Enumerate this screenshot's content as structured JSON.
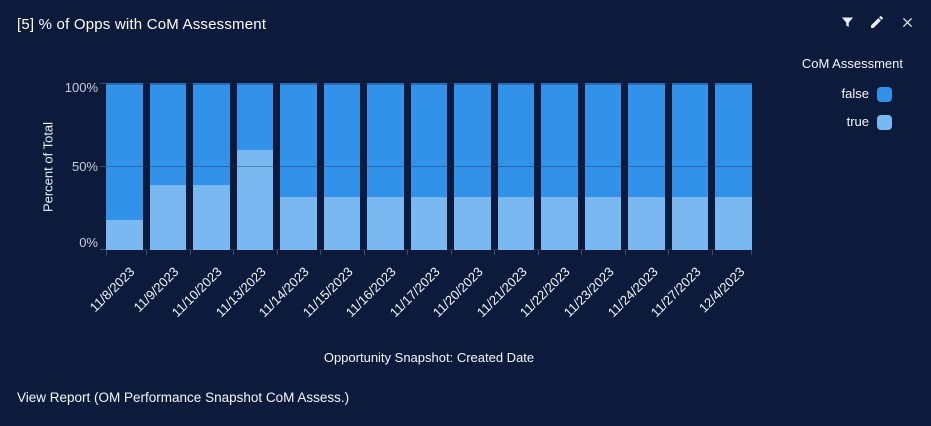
{
  "colors": {
    "background": "#0C1B3C",
    "series_false": "#3292EA",
    "series_true": "#7AB8F1"
  },
  "header": {
    "title": "[5] % of Opps with CoM Assessment"
  },
  "toolbar": {
    "filter_icon": "filter-funnel",
    "edit_icon": "pencil",
    "close_icon": "close-x"
  },
  "legend": {
    "title": "CoM Assessment",
    "items": [
      {
        "label": "false",
        "color": "#3292EA"
      },
      {
        "label": "true",
        "color": "#7AB8F1"
      }
    ]
  },
  "chart_data": {
    "type": "bar",
    "stacked": true,
    "title": "[5] % of Opps with CoM Assessment",
    "xlabel": "Opportunity Snapshot: Created Date",
    "ylabel": "Percent of Total",
    "ylim": [
      0,
      100
    ],
    "yticks": [
      "0%",
      "50%",
      "100%"
    ],
    "grid": "horizontal",
    "legend_position": "right",
    "categories": [
      "11/8/2023",
      "11/9/2023",
      "11/10/2023",
      "11/13/2023",
      "11/14/2023",
      "11/15/2023",
      "11/16/2023",
      "11/17/2023",
      "11/20/2023",
      "11/21/2023",
      "11/22/2023",
      "11/23/2023",
      "11/24/2023",
      "11/27/2023",
      "12/4/2023"
    ],
    "series": [
      {
        "name": "false",
        "color": "#3292EA",
        "values": [
          82,
          61,
          61,
          40,
          68,
          68,
          68,
          68,
          68,
          68,
          68,
          68,
          68,
          68,
          68
        ]
      },
      {
        "name": "true",
        "color": "#7AB8F1",
        "values": [
          18,
          39,
          39,
          60,
          32,
          32,
          32,
          32,
          32,
          32,
          32,
          32,
          32,
          32,
          32
        ]
      }
    ]
  },
  "footer": {
    "view_report": "View Report (OM Performance Snapshot CoM Assess.)"
  }
}
